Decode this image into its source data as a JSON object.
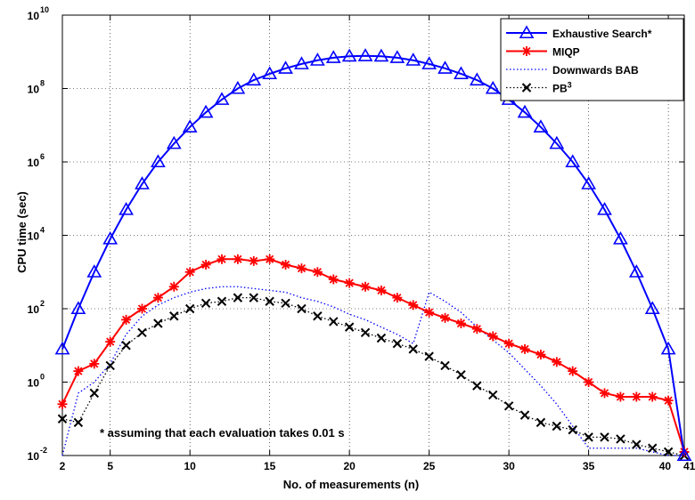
{
  "chart_data": {
    "type": "line",
    "title": "",
    "xlabel": "No. of measurements (n)",
    "ylabel": "CPU time (sec)",
    "xlim": [
      2,
      41
    ],
    "ylim_log10": [
      -2,
      10
    ],
    "y_scale": "log",
    "grid": true,
    "legend_position": "top-right",
    "x_ticks": [
      2,
      5,
      10,
      15,
      20,
      25,
      30,
      35,
      40,
      41
    ],
    "x_tick_labels": [
      "2",
      "5",
      "10",
      "15",
      "20",
      "25",
      "30",
      "35",
      "40",
      "41"
    ],
    "y_ticks_exp": [
      -2,
      0,
      2,
      4,
      6,
      8,
      10
    ],
    "y_tick_base": "10",
    "annotation": "* assuming that each evaluation takes 0.01 s",
    "x": [
      2,
      3,
      4,
      5,
      6,
      7,
      8,
      9,
      10,
      11,
      12,
      13,
      14,
      15,
      16,
      17,
      18,
      19,
      20,
      21,
      22,
      23,
      24,
      25,
      26,
      27,
      28,
      29,
      30,
      31,
      32,
      33,
      34,
      35,
      36,
      37,
      38,
      39,
      40,
      41
    ],
    "series": [
      {
        "name": "Exhaustive Search*",
        "color": "#0000ff",
        "marker": "triangle",
        "line": "solid",
        "log10_values": [
          0.9,
          2.0,
          3.0,
          3.9,
          4.7,
          5.4,
          6.0,
          6.5,
          6.95,
          7.35,
          7.7,
          8.0,
          8.23,
          8.4,
          8.55,
          8.67,
          8.77,
          8.84,
          8.88,
          8.89,
          8.88,
          8.84,
          8.77,
          8.67,
          8.55,
          8.4,
          8.23,
          8.0,
          7.7,
          7.35,
          6.95,
          6.5,
          6.0,
          5.4,
          4.7,
          3.9,
          3.0,
          2.0,
          0.9,
          -2.0
        ]
      },
      {
        "name": "MIQP",
        "color": "#ff0000",
        "marker": "asterisk",
        "line": "solid",
        "log10_values": [
          -0.6,
          0.3,
          0.5,
          1.1,
          1.7,
          2.0,
          2.3,
          2.6,
          3.0,
          3.2,
          3.35,
          3.35,
          3.3,
          3.35,
          3.2,
          3.1,
          3.0,
          2.8,
          2.7,
          2.6,
          2.5,
          2.3,
          2.1,
          1.9,
          1.75,
          1.6,
          1.45,
          1.25,
          1.05,
          0.9,
          0.75,
          0.55,
          0.3,
          0.0,
          -0.3,
          -0.4,
          -0.4,
          -0.4,
          -0.5,
          -1.9
        ]
      },
      {
        "name": "Downwards BAB",
        "color": "#0000ff",
        "marker": "none",
        "line": "dotted",
        "log10_values": [
          -2.0,
          -0.3,
          0.0,
          0.5,
          1.3,
          1.8,
          2.1,
          2.3,
          2.45,
          2.55,
          2.6,
          2.6,
          2.55,
          2.5,
          2.45,
          2.3,
          2.2,
          2.05,
          1.85,
          1.7,
          1.5,
          1.3,
          1.05,
          2.45,
          2.2,
          1.9,
          1.5,
          1.15,
          0.8,
          0.35,
          -0.1,
          -0.6,
          -1.2,
          -1.8,
          -1.8,
          -1.8,
          -1.8,
          -1.9,
          -2.0,
          -2.0
        ]
      },
      {
        "name": "PB",
        "name_superscript": "3",
        "color": "#000000",
        "marker": "x",
        "line": "dotted",
        "log10_values": [
          -1.0,
          -1.1,
          -0.3,
          0.45,
          1.0,
          1.35,
          1.6,
          1.8,
          2.0,
          2.15,
          2.2,
          2.3,
          2.3,
          2.2,
          2.15,
          2.0,
          1.8,
          1.65,
          1.5,
          1.35,
          1.2,
          1.05,
          0.9,
          0.7,
          0.45,
          0.2,
          -0.1,
          -0.35,
          -0.65,
          -0.9,
          -1.1,
          -1.2,
          -1.3,
          -1.5,
          -1.5,
          -1.55,
          -1.7,
          -1.8,
          -1.9,
          -2.0
        ]
      }
    ]
  }
}
